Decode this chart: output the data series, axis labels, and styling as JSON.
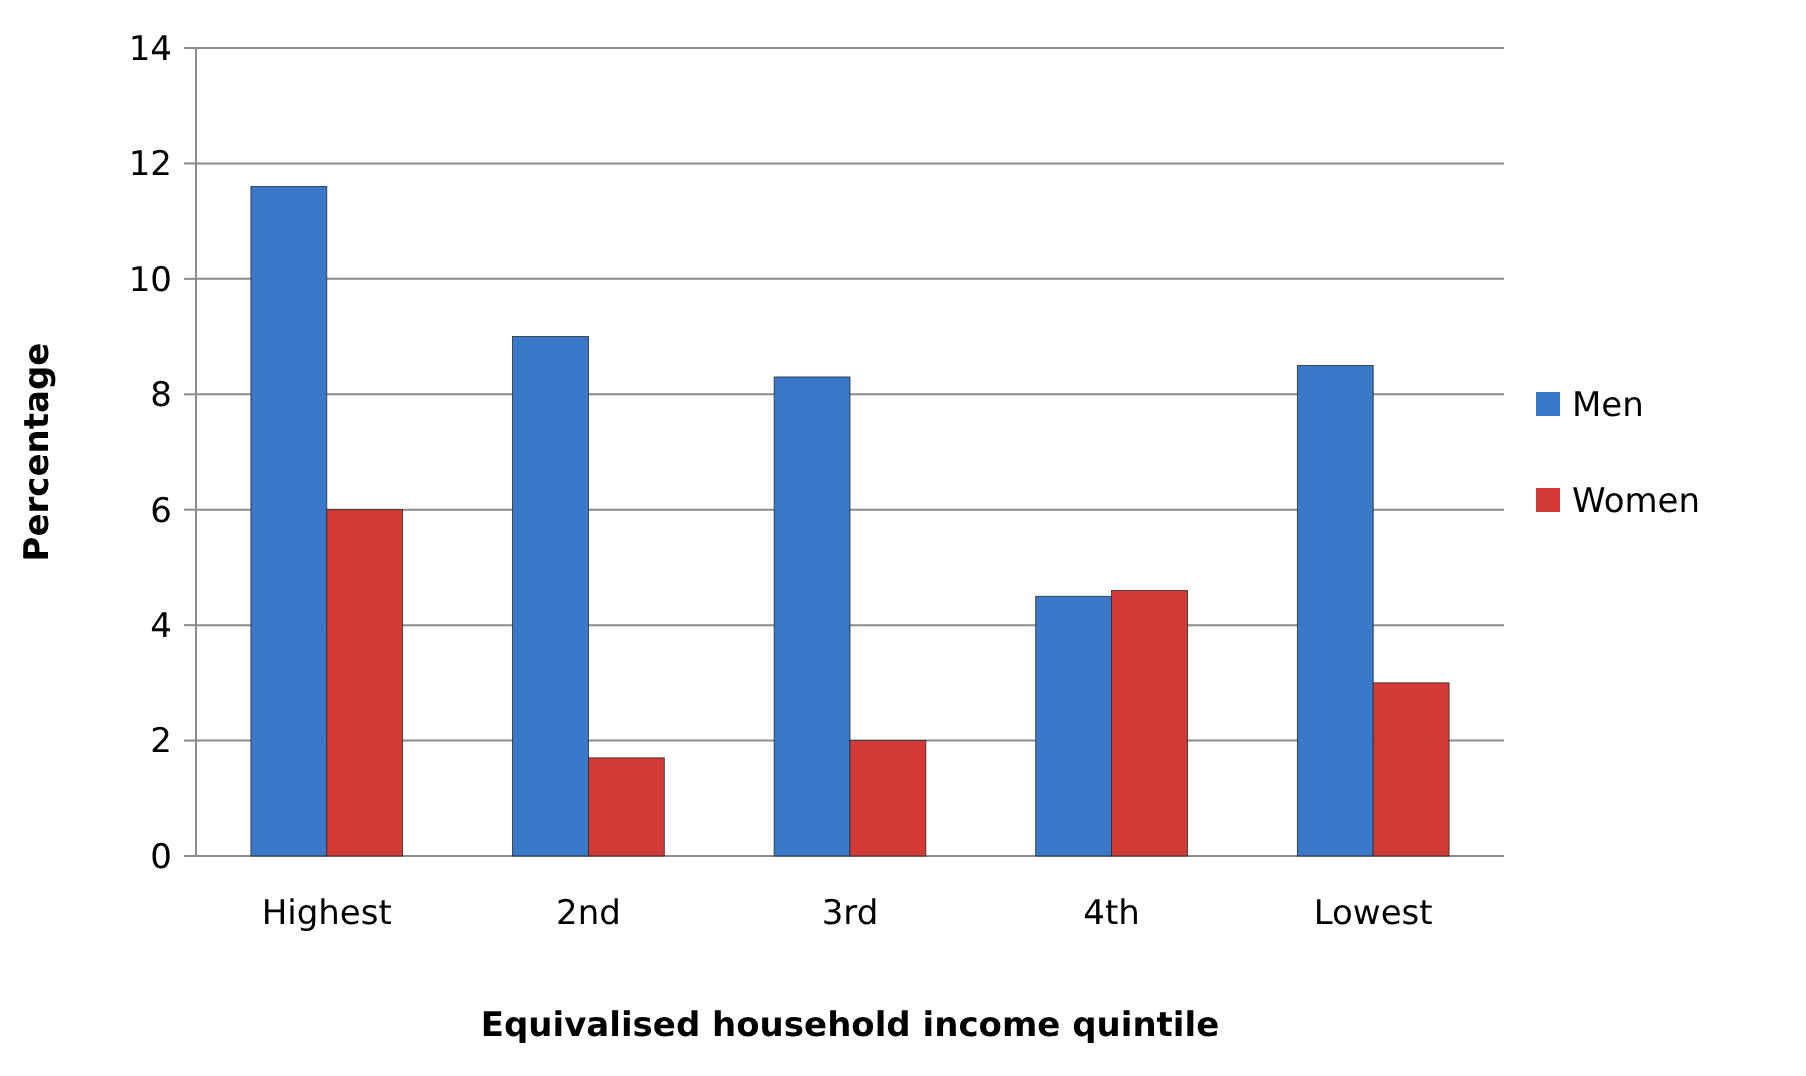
{
  "chart_data": {
    "type": "bar",
    "xlabel": "Equivalised household income quintile",
    "ylabel": "Percentage",
    "categories": [
      "Highest",
      "2nd",
      "3rd",
      "4th",
      "Lowest"
    ],
    "series": [
      {
        "name": "Men",
        "color": "#3a78c9",
        "values": [
          11.6,
          9.0,
          8.3,
          4.5,
          8.5
        ]
      },
      {
        "name": "Women",
        "color": "#d23a36",
        "values": [
          6.0,
          1.7,
          2.0,
          4.6,
          3.0
        ]
      }
    ],
    "ylim": [
      0,
      14
    ],
    "yticks": [
      0,
      2,
      4,
      6,
      8,
      10,
      12,
      14
    ],
    "grid": "y",
    "legend": "right"
  }
}
